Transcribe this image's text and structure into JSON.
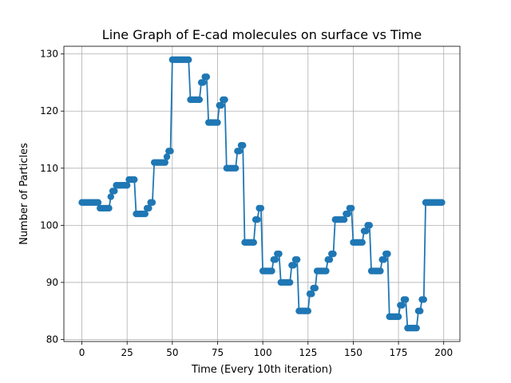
{
  "chart_data": {
    "type": "line",
    "title": "Line Graph of E-cad molecules on surface vs Time",
    "xlabel": "Time (Every 10th iteration)",
    "ylabel": "Number of Particles",
    "xlim": [
      -9.95,
      208.95
    ],
    "ylim": [
      79.65,
      131.35
    ],
    "xticks": [
      0,
      25,
      50,
      75,
      100,
      125,
      150,
      175,
      200
    ],
    "yticks": [
      80,
      90,
      100,
      110,
      120,
      130
    ],
    "grid": true,
    "color": "#1f77b4",
    "marker": "circle",
    "series": [
      {
        "name": "E-cad molecules",
        "x": [
          0,
          1,
          2,
          3,
          4,
          5,
          6,
          7,
          8,
          9,
          10,
          11,
          12,
          13,
          14,
          15,
          16,
          17,
          18,
          19,
          20,
          21,
          22,
          23,
          24,
          25,
          26,
          27,
          28,
          29,
          30,
          31,
          32,
          33,
          34,
          35,
          36,
          37,
          38,
          39,
          40,
          41,
          42,
          43,
          44,
          45,
          46,
          47,
          48,
          49,
          50,
          51,
          52,
          53,
          54,
          55,
          56,
          57,
          58,
          59,
          60,
          61,
          62,
          63,
          64,
          65,
          66,
          67,
          68,
          69,
          70,
          71,
          72,
          73,
          74,
          75,
          76,
          77,
          78,
          79,
          80,
          81,
          82,
          83,
          84,
          85,
          86,
          87,
          88,
          89,
          90,
          91,
          92,
          93,
          94,
          95,
          96,
          97,
          98,
          99,
          100,
          101,
          102,
          103,
          104,
          105,
          106,
          107,
          108,
          109,
          110,
          111,
          112,
          113,
          114,
          115,
          116,
          117,
          118,
          119,
          120,
          121,
          122,
          123,
          124,
          125,
          126,
          127,
          128,
          129,
          130,
          131,
          132,
          133,
          134,
          135,
          136,
          137,
          138,
          139,
          140,
          141,
          142,
          143,
          144,
          145,
          146,
          147,
          148,
          149,
          150,
          151,
          152,
          153,
          154,
          155,
          156,
          157,
          158,
          159,
          160,
          161,
          162,
          163,
          164,
          165,
          166,
          167,
          168,
          169,
          170,
          171,
          172,
          173,
          174,
          175,
          176,
          177,
          178,
          179,
          180,
          181,
          182,
          183,
          184,
          185,
          186,
          187,
          188,
          189,
          190,
          191,
          192,
          193,
          194,
          195,
          196,
          197,
          198,
          199
        ],
        "y": [
          104,
          104,
          104,
          104,
          104,
          104,
          104,
          104,
          104,
          104,
          103,
          103,
          103,
          103,
          103,
          103,
          105,
          106,
          106,
          107,
          107,
          107,
          107,
          107,
          107,
          107,
          108,
          108,
          108,
          108,
          102,
          102,
          102,
          102,
          102,
          102,
          103,
          103,
          104,
          104,
          111,
          111,
          111,
          111,
          111,
          111,
          111,
          112,
          113,
          113,
          129,
          129,
          129,
          129,
          129,
          129,
          129,
          129,
          129,
          129,
          122,
          122,
          122,
          122,
          122,
          122,
          125,
          125,
          126,
          126,
          118,
          118,
          118,
          118,
          118,
          118,
          121,
          121,
          122,
          122,
          110,
          110,
          110,
          110,
          110,
          110,
          113,
          113,
          114,
          114,
          97,
          97,
          97,
          97,
          97,
          97,
          101,
          101,
          103,
          103,
          92,
          92,
          92,
          92,
          92,
          92,
          94,
          94,
          95,
          95,
          90,
          90,
          90,
          90,
          90,
          90,
          93,
          93,
          94,
          94,
          85,
          85,
          85,
          85,
          85,
          85,
          88,
          88,
          89,
          89,
          92,
          92,
          92,
          92,
          92,
          92,
          94,
          94,
          95,
          95,
          101,
          101,
          101,
          101,
          101,
          101,
          102,
          102,
          103,
          103,
          97,
          97,
          97,
          97,
          97,
          97,
          99,
          99,
          100,
          100,
          92,
          92,
          92,
          92,
          92,
          92,
          94,
          94,
          95,
          95,
          84,
          84,
          84,
          84,
          84,
          84,
          86,
          86,
          87,
          87,
          82,
          82,
          82,
          82,
          82,
          82,
          85,
          85,
          87,
          87,
          104,
          104,
          104,
          104,
          104,
          104,
          104,
          104,
          104,
          104
        ]
      }
    ]
  }
}
